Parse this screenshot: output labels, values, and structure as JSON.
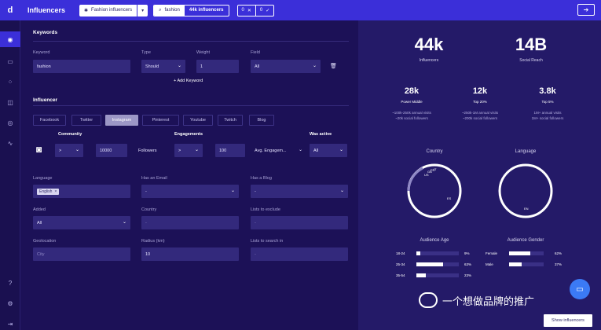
{
  "app": {
    "logo": "d",
    "title": "Influencers"
  },
  "topbar": {
    "list_name": "Fashion influencers",
    "keyword": "fashion",
    "count": "44k influencers",
    "exclude_count": "0",
    "include_count": "0"
  },
  "keywords_section": {
    "title": "Keywords",
    "keyword_label": "Keyword",
    "keyword_value": "fashion",
    "type_label": "Type",
    "type_value": "Should",
    "weight_label": "Weight",
    "weight_value": "1",
    "field_label": "Field",
    "field_value": "All",
    "add_keyword": "Add Keyword"
  },
  "influencer_section": {
    "title": "Influencer",
    "tabs": [
      "Facebook",
      "Twitter",
      "Instagram",
      "Pinterest",
      "Youtube",
      "Twitch",
      "Blog"
    ],
    "active_tab": "Instagram",
    "community_label": "Community",
    "community_op": ">",
    "community_value": "10000",
    "followers_label": "Followers",
    "engagements_label": "Engagements",
    "engagements_op": ">",
    "engagements_value": "100",
    "avg_engagement_label": "Avg. Engagem...",
    "was_active_label": "Was active",
    "was_active_value": "All",
    "language_label": "Language",
    "language_chip": "English",
    "has_email_label": "Has an Email",
    "has_email_value": "-",
    "has_blog_label": "Has a Blog",
    "has_blog_value": "-",
    "added_label": "Added",
    "added_value": "All",
    "country_label": "Country",
    "country_value": "-",
    "lists_exclude_label": "Lists to exclude",
    "lists_exclude_value": "-",
    "geolocation_label": "Geolocation",
    "geolocation_placeholder": "City",
    "radius_label": "Radius (km)",
    "radius_value": "10",
    "lists_search_label": "Lists to search in",
    "lists_search_value": "-"
  },
  "stats": {
    "influencers_value": "44k",
    "influencers_label": "Influencers",
    "reach_value": "14B",
    "reach_label": "Social Reach",
    "tiers": [
      {
        "value": "28k",
        "label": "Power Middle",
        "line1": "~100k-250k annual visits",
        "line2": "~20k social followers"
      },
      {
        "value": "12k",
        "label": "Top 20%",
        "line1": "~250k-1M annual visits",
        "line2": "~200k social followers"
      },
      {
        "value": "3.8k",
        "label": "Top 5%",
        "line1": "1M+ annual visits",
        "line2": "1M+ social followers"
      }
    ],
    "country_title": "Country",
    "language_title": "Language",
    "country_labels": [
      "US",
      "GB",
      "FR",
      "IT",
      "ES"
    ],
    "language_labels": [
      "EN"
    ],
    "audience_age_title": "Audience Age",
    "audience_age": [
      {
        "label": "18-24",
        "pct": "9%",
        "value": 9
      },
      {
        "label": "25-34",
        "pct": "63%",
        "value": 63
      },
      {
        "label": "35-54",
        "pct": "23%",
        "value": 23
      }
    ],
    "audience_gender_title": "Audience Gender",
    "audience_gender": [
      {
        "label": "Female",
        "pct": "62%",
        "value": 62
      },
      {
        "label": "Male",
        "pct": "37%",
        "value": 37
      }
    ]
  },
  "watermark_text": "一个想做品牌的推广",
  "show_button": "Show influencers",
  "colors": {
    "topbar": "#3b2fd9",
    "background": "#1c1157",
    "panel": "#241a68",
    "field": "#33297c",
    "chat": "#3b7af5"
  }
}
